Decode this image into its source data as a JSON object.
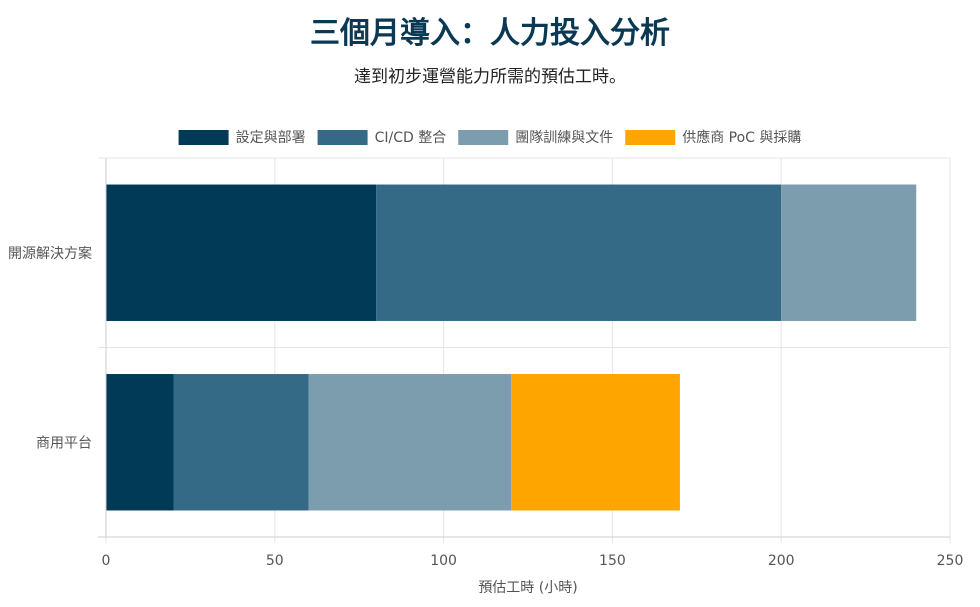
{
  "title": "三個月導入：人力投入分析",
  "subtitle": "達到初步運營能力所需的預估工時。",
  "chart_data": {
    "type": "bar",
    "orientation": "horizontal",
    "stacked": true,
    "categories": [
      "開源解決方案",
      "商用平台"
    ],
    "series": [
      {
        "name": "設定與部署",
        "color": "#003a57",
        "values": [
          80,
          20
        ]
      },
      {
        "name": "CI/CD 整合",
        "color": "#346a85",
        "values": [
          120,
          40
        ]
      },
      {
        "name": "團隊訓練與文件",
        "color": "#7b9dae",
        "values": [
          40,
          60
        ]
      },
      {
        "name": "供應商 PoC 與採購",
        "color": "#ffa500",
        "values": [
          0,
          50
        ]
      }
    ],
    "xlabel": "預估工時 (小時)",
    "ylabel": "",
    "xlim": [
      0,
      250
    ],
    "xticks": [
      0,
      50,
      100,
      150,
      200,
      250
    ],
    "grid": true,
    "legend": "top"
  }
}
